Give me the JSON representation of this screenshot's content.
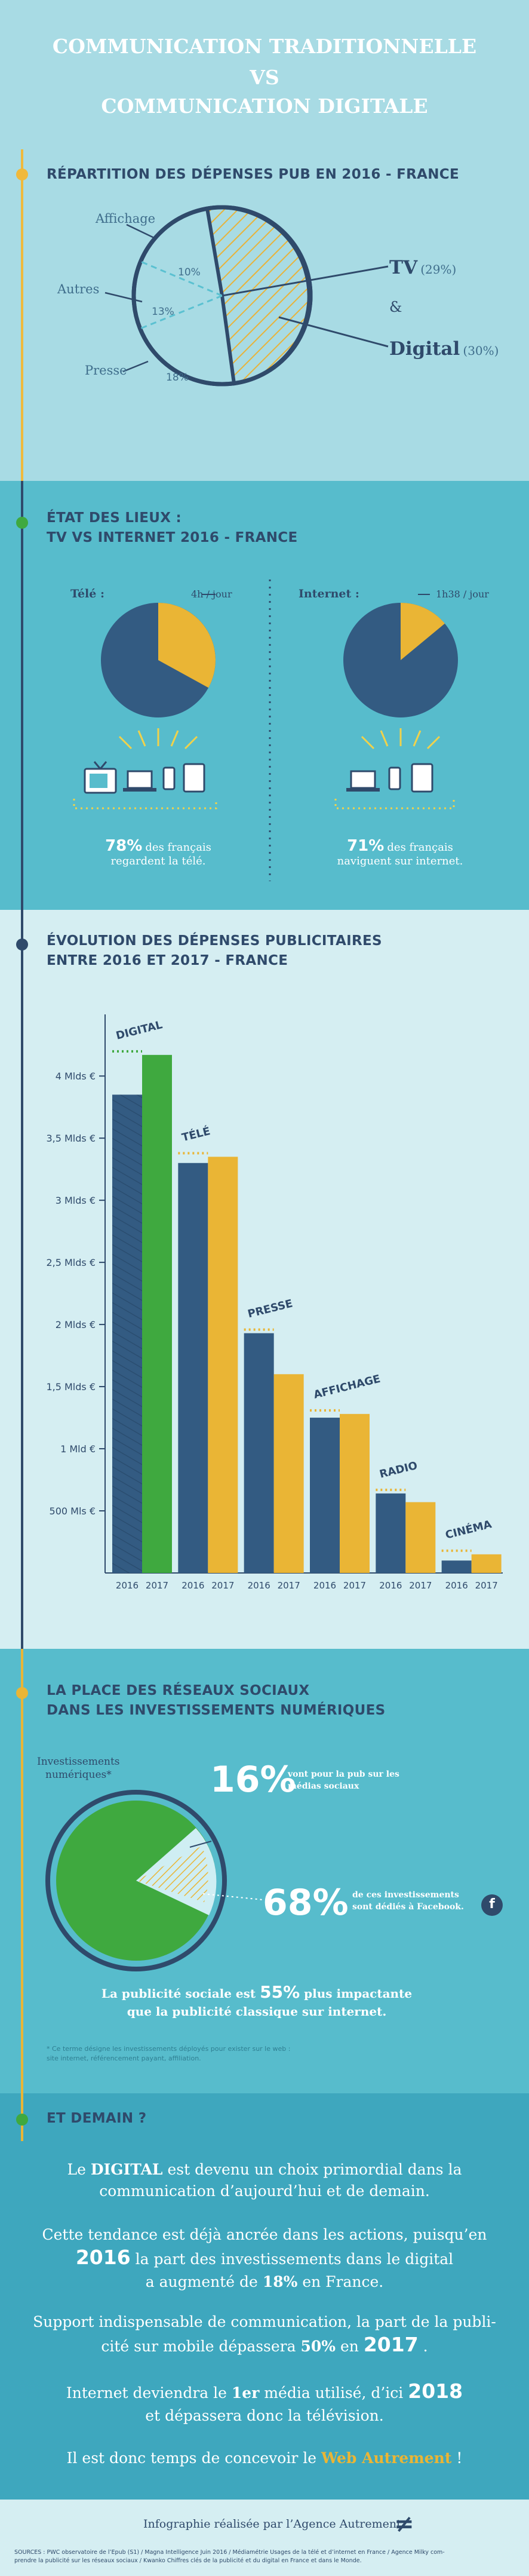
{
  "header": {
    "line1": "COMMUNICATION TRADITIONNELLE",
    "line2": "VS",
    "line3": "COMMUNICATION DIGITALE"
  },
  "section1": {
    "title": "RÉPARTITION DES DÉPENSES PUB EN 2016 - FRANCE",
    "labels": {
      "affichage": "Affichage",
      "autres": "Autres",
      "presse": "Presse"
    },
    "pct": {
      "affichage": "10%",
      "autres": "13%",
      "presse": "18%"
    },
    "tv_label": "TV",
    "tv_pct": "(29%)",
    "amp": "&",
    "digital_label": "Digital",
    "digital_pct": "(30%)"
  },
  "section2": {
    "title_line1": "ÉTAT DES LIEUX :",
    "title_line2": "TV VS INTERNET 2016 - FRANCE",
    "tele_label": "Télé :",
    "tele_time": "4h / jour",
    "tele_share": 0.33,
    "tele_stat": "78%",
    "tele_text1": "des français",
    "tele_text2": "regardent la télé.",
    "internet_label": "Internet :",
    "internet_time": "1h38 / jour",
    "internet_share": 0.14,
    "internet_stat": "71%",
    "internet_text1": "des français",
    "internet_text2": "naviguent sur internet."
  },
  "section3": {
    "title_line1": "ÉVOLUTION DES DÉPENSES PUBLICITAIRES",
    "title_line2": "ENTRE 2016 ET 2017 - FRANCE"
  },
  "chart_data": {
    "type": "bar",
    "categories": [
      "DIGITAL",
      "TÉLÉ",
      "PRESSE",
      "AFFICHAGE",
      "RADIO",
      "CINÉMA"
    ],
    "x_tick_labels": [
      "2016",
      "2017"
    ],
    "series": [
      {
        "name": "2016",
        "values": [
          3.85,
          3.3,
          1.93,
          1.25,
          0.64,
          0.1
        ]
      },
      {
        "name": "2017",
        "values": [
          4.17,
          3.35,
          1.6,
          1.28,
          0.57,
          0.15
        ]
      }
    ],
    "y_ticks": [
      {
        "v": 0.5,
        "label": "500 Mls €"
      },
      {
        "v": 1.0,
        "label": "1 Mld €"
      },
      {
        "v": 1.5,
        "label": "1,5 Mlds €"
      },
      {
        "v": 2.0,
        "label": "2 Mlds €"
      },
      {
        "v": 2.5,
        "label": "2,5 Mlds €"
      },
      {
        "v": 3.0,
        "label": "3 Mlds €"
      },
      {
        "v": 3.5,
        "label": "3,5 Mlds €"
      },
      {
        "v": 4.0,
        "label": "4 Mlds €"
      }
    ],
    "ylim": [
      0,
      4.4
    ],
    "colors": {
      "2016": "#335b82",
      "digital2017": "#3fa93f",
      "other2017": "#eab535"
    }
  },
  "section4": {
    "title_line1": "LA PLACE DES RÉSEAUX SOCIAUX",
    "title_line2": "DANS LES INVESTISSEMENTS NUMÉRIQUES",
    "inv_label1": "Investissements",
    "inv_label2": "numériques*",
    "stat1": "16%",
    "stat1_text1": "vont pour la pub sur les",
    "stat1_text2": "médias sociaux",
    "stat2": "68%",
    "stat2_text1": "de ces investissements",
    "stat2_text2": "sont dédiés à Facebook.",
    "fb": "f",
    "impact_a": "La publicité sociale est",
    "impact_pct": "55%",
    "impact_b": "plus impactante",
    "impact_c": "que la publicité classique sur internet.",
    "footnote1": "* Ce terme désigne les investissements déployés pour exister sur le web :",
    "footnote2": "site internet, référencement payant, affiliation."
  },
  "section5": {
    "title": "ET DEMAIN ?",
    "p1_a": "Le",
    "p1_b": "DIGITAL",
    "p1_c": "est devenu un choix primordial dans la",
    "p1_d": "communication d’aujourd’hui et de demain.",
    "p2_a": "Cette tendance est déjà ancrée dans les actions, puisqu’en",
    "p2_year": "2016",
    "p2_b": "la part des investissements dans le digital",
    "p2_c": "a augmenté de",
    "p2_pct": "18%",
    "p2_d": "en France.",
    "p3_a": "Support indispensable de communication, la part de la publi-",
    "p3_b": "cité sur mobile dépassera",
    "p3_pct": "50%",
    "p3_c": "en",
    "p3_year": "2017",
    "p3_d": ".",
    "p4_a": "Internet deviendra le",
    "p4_b": "1er",
    "p4_c": "média utilisé, d’ici",
    "p4_year": "2018",
    "p4_d": "et dépassera donc la télévision.",
    "p5_a": "Il est donc temps de concevoir le",
    "p5_b": "Web Autrement",
    "p5_c": "!"
  },
  "footer": {
    "credit": "Infographie réalisée par l’Agence Autrement",
    "logo": "≠",
    "sources1": "SOURCES : PWC observatoire de l’Epub (S1) / Magna Intelligence Juin 2016 / Médiamétrie Usages de la télé et d’internet en France / Agence Milky com-",
    "sources2": "prendre la publicité sur les réseaux sociaux / Kwanko Chiffres clés de la publicité et du digital en France et dans le Monde."
  }
}
